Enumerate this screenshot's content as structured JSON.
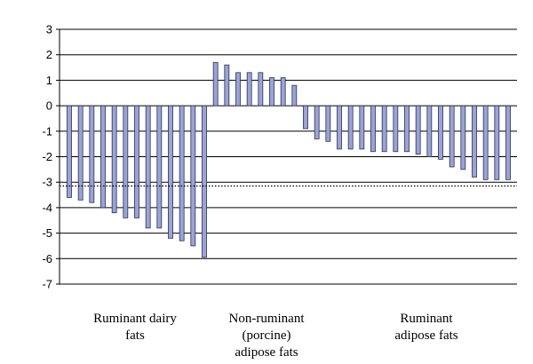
{
  "chart_data": {
    "type": "bar",
    "title": "",
    "xlabel": "",
    "ylabel": "",
    "ylim": [
      -7,
      3
    ],
    "yticks": [
      "3",
      "2",
      "1",
      "0",
      "-1",
      "-2",
      "-3",
      "-4",
      "-5",
      "-6",
      "-7"
    ],
    "grid": true,
    "reference_line": -3.15,
    "bar_color": "#9aa4d4",
    "groups": [
      {
        "label": "Ruminant dairy\nfats",
        "start": 0,
        "end": 13
      },
      {
        "label": "Non-ruminant\n(porcine)\nadipose fats",
        "start": 13,
        "end": 21
      },
      {
        "label": "Ruminant\nadipose fats",
        "start": 21,
        "end": 40
      }
    ],
    "values": [
      -3.6,
      -3.7,
      -3.8,
      -4.0,
      -4.2,
      -4.4,
      -4.4,
      -4.8,
      -4.8,
      -5.2,
      -5.3,
      -5.5,
      -5.95,
      1.7,
      1.6,
      1.3,
      1.3,
      1.3,
      1.1,
      1.1,
      0.8,
      -0.9,
      -1.3,
      -1.4,
      -1.7,
      -1.7,
      -1.7,
      -1.8,
      -1.8,
      -1.8,
      -1.8,
      -1.9,
      -2.0,
      -2.1,
      -2.4,
      -2.5,
      -2.8,
      -2.9,
      -2.9,
      -2.9
    ]
  }
}
